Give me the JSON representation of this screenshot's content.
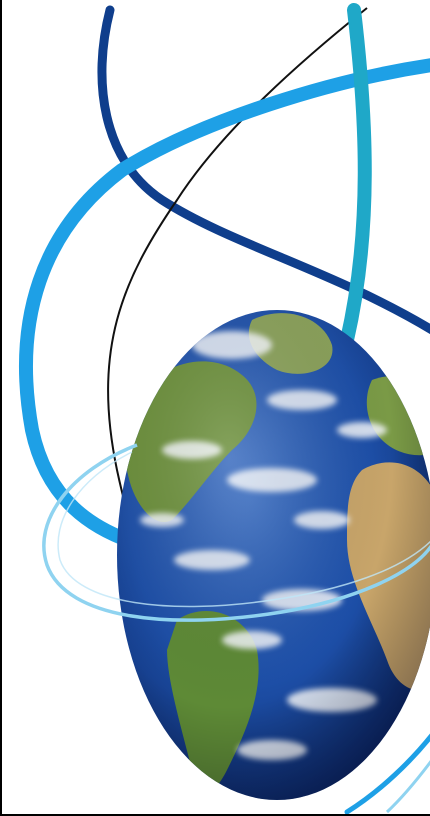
{
  "image": {
    "subject": "globe-with-orbital-ribbons",
    "colors": {
      "background": "#ffffff",
      "frame_line": "#000000",
      "ribbon_dark_blue": "#0f3e8c",
      "ribbon_teal": "#1fa8c8",
      "ribbon_sky": "#1ea0e6",
      "ribbon_pale": "#8fd3f0",
      "thin_line": "#111111",
      "ocean_deep": "#0d2f78",
      "ocean": "#1d4fa8",
      "land_green": "#6b8f3a",
      "land_desert": "#c8a56a",
      "cloud": "#f4f7fb"
    }
  }
}
